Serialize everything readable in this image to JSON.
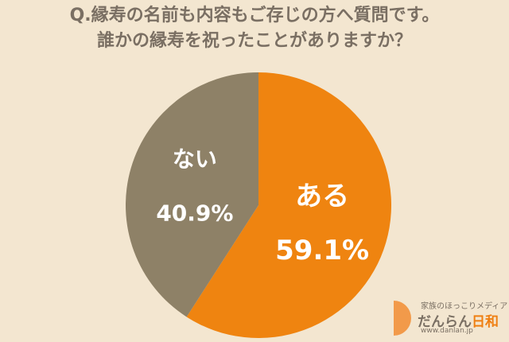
{
  "title": {
    "line1": "Q.縁寿の名前も内容もご存じの方へ質問です。",
    "line2": "誰かの縁寿を祝ったことがありますか？"
  },
  "chart_data": {
    "type": "pie",
    "slices": [
      {
        "label": "ある",
        "value": 59.1,
        "value_text": "59.1%",
        "color": "#ef8410"
      },
      {
        "label": "ない",
        "value": 40.9,
        "value_text": "40.9%",
        "color": "#8e8167"
      }
    ],
    "start": "12 o'clock",
    "direction": "clockwise"
  },
  "logo": {
    "tagline": "家族のほっこりメディア",
    "name_main": "だんらん",
    "name_accent": "日和",
    "url": "www.danlan.jp"
  }
}
